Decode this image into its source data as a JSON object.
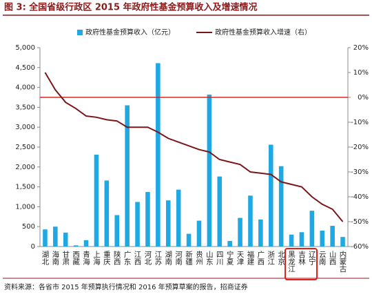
{
  "chart_data": {
    "type": "bar_line",
    "title": "图 3:  全国省级行政区 2015 年政府性基金预算收入及增速情况",
    "source": "资料来源：各省市 2015 年预算执行情况和 2016 年预算草案的报告，招商证券",
    "categories": [
      "湖北",
      "海南",
      "甘肃",
      "西藏",
      "青海",
      "上海",
      "重庆",
      "陕西",
      "广东",
      "江西",
      "河北",
      "江苏",
      "湖南",
      "河南",
      "新疆",
      "贵州",
      "山东",
      "四川",
      "宁夏",
      "天津",
      "福建",
      "广西",
      "浙江",
      "北京",
      "黑龙江",
      "吉林",
      "辽宁",
      "云南",
      "山西",
      "内蒙古"
    ],
    "series": [
      {
        "name": "政府性基金预算收入（亿元）",
        "type": "bar",
        "color": "#1fa8e2",
        "values": [
          430,
          500,
          350,
          30,
          160,
          2310,
          1660,
          790,
          3550,
          1120,
          1370,
          4610,
          1160,
          1430,
          320,
          650,
          3820,
          1760,
          140,
          720,
          1280,
          680,
          2560,
          2020,
          300,
          360,
          900,
          400,
          520,
          240
        ]
      },
      {
        "name": "政府性基金预算收入增速（右）",
        "type": "line",
        "axis": "y2",
        "color": "#7b1518",
        "values": [
          10,
          3,
          -2,
          -4.5,
          -7.5,
          -8,
          -9,
          -9.5,
          -12,
          -12,
          -12,
          -14,
          -16.5,
          -18,
          -19.5,
          -21,
          -22,
          -25,
          -26,
          -27,
          -30,
          -30.5,
          -31,
          -34,
          -35,
          -36,
          -40,
          -43,
          -45,
          -50
        ]
      }
    ],
    "ylim": [
      0,
      5000
    ],
    "yticks": [
      0,
      500,
      {
        "value": 1000,
        "label": "1,000"
      },
      {
        "value": 1500,
        "label": "1,500"
      },
      {
        "value": 2000,
        "label": "2,000"
      },
      {
        "value": 2500,
        "label": "2,500"
      },
      {
        "value": 3000,
        "label": "3,000"
      },
      {
        "value": 3500,
        "label": "3,500"
      },
      {
        "value": 4000,
        "label": "4,000"
      },
      {
        "value": 4500,
        "label": "4,500"
      },
      {
        "value": 5000,
        "label": "5,000"
      }
    ],
    "y2lim": [
      -60,
      20
    ],
    "y2ticks": [
      {
        "value": -60,
        "label": "-60%"
      },
      {
        "value": -50,
        "label": "-50%"
      },
      {
        "value": -40,
        "label": "-40%"
      },
      {
        "value": -30,
        "label": "-30%"
      },
      {
        "value": -20,
        "label": "-20%"
      },
      {
        "value": -10,
        "label": "-10%"
      },
      {
        "value": 0,
        "label": "0%"
      },
      {
        "value": 10,
        "label": "10%"
      },
      {
        "value": 20,
        "label": "20%"
      }
    ],
    "reference_line": {
      "axis": "y2",
      "value": 0,
      "color": "#e0201b"
    }
  }
}
